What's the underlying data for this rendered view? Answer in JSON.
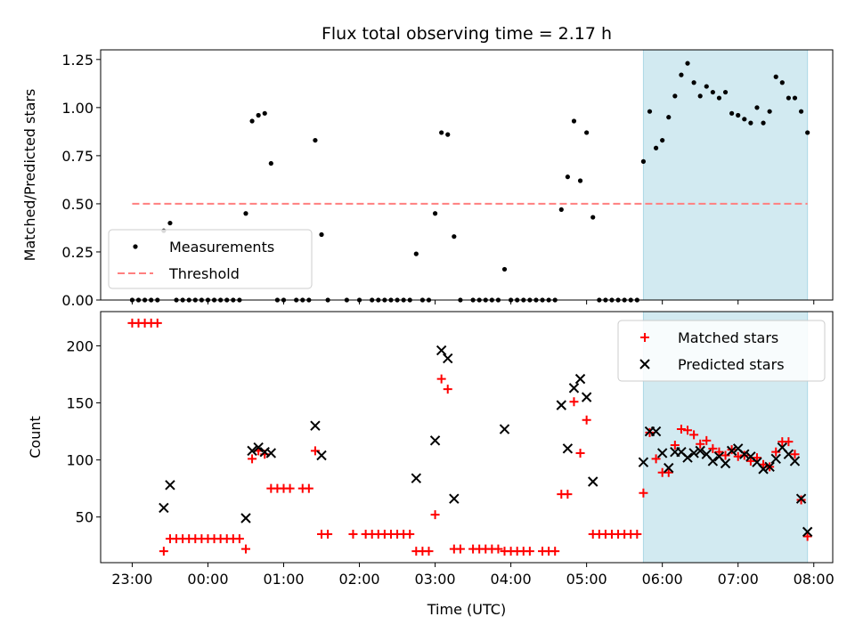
{
  "chart_data": [
    {
      "type": "scatter",
      "title": "Flux total observing time = 2.17 h",
      "xlabel": "",
      "ylabel": "Matched/Predicted stars",
      "xlim": [
        "22:35",
        "08:15"
      ],
      "ylim": [
        0,
        1.3
      ],
      "yticks": [
        "0.00",
        "0.25",
        "0.50",
        "0.75",
        "1.00",
        "1.25"
      ],
      "highlight_span": [
        "05:45",
        "07:55"
      ],
      "highlight_color": "#add8e6",
      "legend": {
        "placement": "lower-left",
        "entries": [
          "Measurements",
          "Threshold"
        ]
      },
      "threshold": {
        "name": "Threshold",
        "value": 0.5,
        "x": [
          "23:00",
          "07:55"
        ],
        "color": "#ff7f7f"
      },
      "series": [
        {
          "name": "Measurements",
          "color": "#000000",
          "points": [
            [
              "23:00",
              0.0
            ],
            [
              "23:05",
              0.0
            ],
            [
              "23:10",
              0.0
            ],
            [
              "23:15",
              0.0
            ],
            [
              "23:20",
              0.0
            ],
            [
              "23:25",
              0.36
            ],
            [
              "23:30",
              0.4
            ],
            [
              "23:35",
              0.0
            ],
            [
              "23:40",
              0.0
            ],
            [
              "23:45",
              0.0
            ],
            [
              "23:50",
              0.0
            ],
            [
              "23:55",
              0.0
            ],
            [
              "00:00",
              0.0
            ],
            [
              "00:05",
              0.0
            ],
            [
              "00:10",
              0.0
            ],
            [
              "00:15",
              0.0
            ],
            [
              "00:20",
              0.0
            ],
            [
              "00:25",
              0.0
            ],
            [
              "00:30",
              0.45
            ],
            [
              "00:35",
              0.93
            ],
            [
              "00:40",
              0.96
            ],
            [
              "00:45",
              0.97
            ],
            [
              "00:50",
              0.71
            ],
            [
              "00:55",
              0.0
            ],
            [
              "01:00",
              0.0
            ],
            [
              "01:10",
              0.0
            ],
            [
              "01:15",
              0.0
            ],
            [
              "01:20",
              0.0
            ],
            [
              "01:25",
              0.83
            ],
            [
              "01:30",
              0.34
            ],
            [
              "01:35",
              0.0
            ],
            [
              "01:50",
              0.0
            ],
            [
              "02:00",
              0.0
            ],
            [
              "02:10",
              0.0
            ],
            [
              "02:15",
              0.0
            ],
            [
              "02:20",
              0.0
            ],
            [
              "02:25",
              0.0
            ],
            [
              "02:30",
              0.0
            ],
            [
              "02:35",
              0.0
            ],
            [
              "02:40",
              0.0
            ],
            [
              "02:45",
              0.24
            ],
            [
              "02:50",
              0.0
            ],
            [
              "02:55",
              0.0
            ],
            [
              "03:00",
              0.45
            ],
            [
              "03:05",
              0.87
            ],
            [
              "03:10",
              0.86
            ],
            [
              "03:15",
              0.33
            ],
            [
              "03:20",
              0.0
            ],
            [
              "03:30",
              0.0
            ],
            [
              "03:35",
              0.0
            ],
            [
              "03:40",
              0.0
            ],
            [
              "03:45",
              0.0
            ],
            [
              "03:50",
              0.0
            ],
            [
              "03:55",
              0.16
            ],
            [
              "04:00",
              0.0
            ],
            [
              "04:05",
              0.0
            ],
            [
              "04:10",
              0.0
            ],
            [
              "04:15",
              0.0
            ],
            [
              "04:20",
              0.0
            ],
            [
              "04:25",
              0.0
            ],
            [
              "04:30",
              0.0
            ],
            [
              "04:35",
              0.0
            ],
            [
              "04:40",
              0.47
            ],
            [
              "04:45",
              0.64
            ],
            [
              "04:50",
              0.93
            ],
            [
              "04:55",
              0.62
            ],
            [
              "05:00",
              0.87
            ],
            [
              "05:05",
              0.43
            ],
            [
              "05:10",
              0.0
            ],
            [
              "05:15",
              0.0
            ],
            [
              "05:20",
              0.0
            ],
            [
              "05:25",
              0.0
            ],
            [
              "05:30",
              0.0
            ],
            [
              "05:35",
              0.0
            ],
            [
              "05:40",
              0.0
            ],
            [
              "05:45",
              0.72
            ],
            [
              "05:50",
              0.98
            ],
            [
              "05:55",
              0.79
            ],
            [
              "06:00",
              0.83
            ],
            [
              "06:05",
              0.95
            ],
            [
              "06:10",
              1.06
            ],
            [
              "06:15",
              1.17
            ],
            [
              "06:20",
              1.23
            ],
            [
              "06:25",
              1.13
            ],
            [
              "06:30",
              1.06
            ],
            [
              "06:35",
              1.11
            ],
            [
              "06:40",
              1.08
            ],
            [
              "06:45",
              1.05
            ],
            [
              "06:50",
              1.08
            ],
            [
              "06:55",
              0.97
            ],
            [
              "07:00",
              0.96
            ],
            [
              "07:05",
              0.94
            ],
            [
              "07:10",
              0.92
            ],
            [
              "07:15",
              1.0
            ],
            [
              "07:20",
              0.92
            ],
            [
              "07:25",
              0.98
            ],
            [
              "07:30",
              1.16
            ],
            [
              "07:35",
              1.13
            ],
            [
              "07:40",
              1.05
            ],
            [
              "07:45",
              1.05
            ],
            [
              "07:50",
              0.98
            ],
            [
              "07:55",
              0.87
            ]
          ]
        }
      ]
    },
    {
      "type": "scatter",
      "title": "",
      "xlabel": "Time (UTC)",
      "ylabel": "Count",
      "xlim": [
        "22:35",
        "08:15"
      ],
      "ylim": [
        10,
        230
      ],
      "yticks": [
        "50",
        "100",
        "150",
        "200"
      ],
      "xticks": [
        "23:00",
        "00:00",
        "01:00",
        "02:00",
        "03:00",
        "04:00",
        "05:00",
        "06:00",
        "07:00",
        "08:00"
      ],
      "highlight_span": [
        "05:45",
        "07:55"
      ],
      "highlight_color": "#add8e6",
      "legend": {
        "placement": "upper-right",
        "entries": [
          "Matched stars",
          "Predicted stars"
        ]
      },
      "series": [
        {
          "name": "Matched stars",
          "marker": "+",
          "color": "#ff0000",
          "points": [
            [
              "23:00",
              220
            ],
            [
              "23:05",
              220
            ],
            [
              "23:10",
              220
            ],
            [
              "23:15",
              220
            ],
            [
              "23:20",
              220
            ],
            [
              "23:25",
              20
            ],
            [
              "23:30",
              31
            ],
            [
              "23:35",
              31
            ],
            [
              "23:40",
              31
            ],
            [
              "23:45",
              31
            ],
            [
              "23:50",
              31
            ],
            [
              "23:55",
              31
            ],
            [
              "00:00",
              31
            ],
            [
              "00:05",
              31
            ],
            [
              "00:10",
              31
            ],
            [
              "00:15",
              31
            ],
            [
              "00:20",
              31
            ],
            [
              "00:25",
              31
            ],
            [
              "00:30",
              22
            ],
            [
              "00:35",
              101
            ],
            [
              "00:40",
              108
            ],
            [
              "00:45",
              105
            ],
            [
              "00:50",
              75
            ],
            [
              "00:55",
              75
            ],
            [
              "01:00",
              75
            ],
            [
              "01:05",
              75
            ],
            [
              "01:15",
              75
            ],
            [
              "01:20",
              75
            ],
            [
              "01:25",
              108
            ],
            [
              "01:30",
              35
            ],
            [
              "01:35",
              35
            ],
            [
              "01:55",
              35
            ],
            [
              "02:05",
              35
            ],
            [
              "02:10",
              35
            ],
            [
              "02:15",
              35
            ],
            [
              "02:20",
              35
            ],
            [
              "02:25",
              35
            ],
            [
              "02:30",
              35
            ],
            [
              "02:35",
              35
            ],
            [
              "02:40",
              35
            ],
            [
              "02:45",
              20
            ],
            [
              "02:50",
              20
            ],
            [
              "02:55",
              20
            ],
            [
              "03:00",
              52
            ],
            [
              "03:05",
              171
            ],
            [
              "03:10",
              162
            ],
            [
              "03:15",
              22
            ],
            [
              "03:20",
              22
            ],
            [
              "03:30",
              22
            ],
            [
              "03:35",
              22
            ],
            [
              "03:40",
              22
            ],
            [
              "03:45",
              22
            ],
            [
              "03:50",
              22
            ],
            [
              "03:55",
              20
            ],
            [
              "04:00",
              20
            ],
            [
              "04:05",
              20
            ],
            [
              "04:10",
              20
            ],
            [
              "04:15",
              20
            ],
            [
              "04:25",
              20
            ],
            [
              "04:30",
              20
            ],
            [
              "04:35",
              20
            ],
            [
              "04:40",
              70
            ],
            [
              "04:45",
              70
            ],
            [
              "04:50",
              151
            ],
            [
              "04:55",
              106
            ],
            [
              "05:00",
              135
            ],
            [
              "05:05",
              35
            ],
            [
              "05:10",
              35
            ],
            [
              "05:15",
              35
            ],
            [
              "05:20",
              35
            ],
            [
              "05:25",
              35
            ],
            [
              "05:30",
              35
            ],
            [
              "05:35",
              35
            ],
            [
              "05:40",
              35
            ],
            [
              "05:45",
              71
            ],
            [
              "05:50",
              124
            ],
            [
              "05:55",
              101
            ],
            [
              "06:00",
              89
            ],
            [
              "06:05",
              89
            ],
            [
              "06:10",
              113
            ],
            [
              "06:15",
              127
            ],
            [
              "06:20",
              126
            ],
            [
              "06:25",
              122
            ],
            [
              "06:30",
              114
            ],
            [
              "06:35",
              117
            ],
            [
              "06:40",
              110
            ],
            [
              "06:45",
              107
            ],
            [
              "06:50",
              104
            ],
            [
              "06:55",
              109
            ],
            [
              "07:00",
              103
            ],
            [
              "07:05",
              104
            ],
            [
              "07:10",
              99
            ],
            [
              "07:15",
              102
            ],
            [
              "07:20",
              96
            ],
            [
              "07:25",
              94
            ],
            [
              "07:30",
              107
            ],
            [
              "07:35",
              116
            ],
            [
              "07:40",
              116
            ],
            [
              "07:45",
              105
            ],
            [
              "07:50",
              65
            ],
            [
              "07:55",
              33
            ]
          ]
        },
        {
          "name": "Predicted stars",
          "marker": "x",
          "color": "#000000",
          "points": [
            [
              "23:25",
              58
            ],
            [
              "23:30",
              78
            ],
            [
              "00:30",
              49
            ],
            [
              "00:35",
              108
            ],
            [
              "00:40",
              111
            ],
            [
              "00:45",
              107
            ],
            [
              "00:50",
              106
            ],
            [
              "01:25",
              130
            ],
            [
              "01:30",
              104
            ],
            [
              "02:45",
              84
            ],
            [
              "03:00",
              117
            ],
            [
              "03:05",
              196
            ],
            [
              "03:10",
              189
            ],
            [
              "03:15",
              66
            ],
            [
              "03:55",
              127
            ],
            [
              "04:40",
              148
            ],
            [
              "04:45",
              110
            ],
            [
              "04:50",
              163
            ],
            [
              "04:55",
              171
            ],
            [
              "05:00",
              155
            ],
            [
              "05:05",
              81
            ],
            [
              "05:45",
              98
            ],
            [
              "05:50",
              125
            ],
            [
              "05:55",
              125
            ],
            [
              "06:00",
              106
            ],
            [
              "06:05",
              93
            ],
            [
              "06:10",
              107
            ],
            [
              "06:15",
              107
            ],
            [
              "06:20",
              102
            ],
            [
              "06:25",
              106
            ],
            [
              "06:30",
              108
            ],
            [
              "06:35",
              105
            ],
            [
              "06:40",
              99
            ],
            [
              "06:45",
              103
            ],
            [
              "06:50",
              97
            ],
            [
              "06:55",
              108
            ],
            [
              "07:00",
              110
            ],
            [
              "07:05",
              105
            ],
            [
              "07:10",
              103
            ],
            [
              "07:15",
              98
            ],
            [
              "07:20",
              92
            ],
            [
              "07:25",
              94
            ],
            [
              "07:30",
              101
            ],
            [
              "07:35",
              111
            ],
            [
              "07:40",
              105
            ],
            [
              "07:45",
              99
            ],
            [
              "07:50",
              66
            ],
            [
              "07:55",
              37
            ]
          ]
        }
      ]
    }
  ]
}
